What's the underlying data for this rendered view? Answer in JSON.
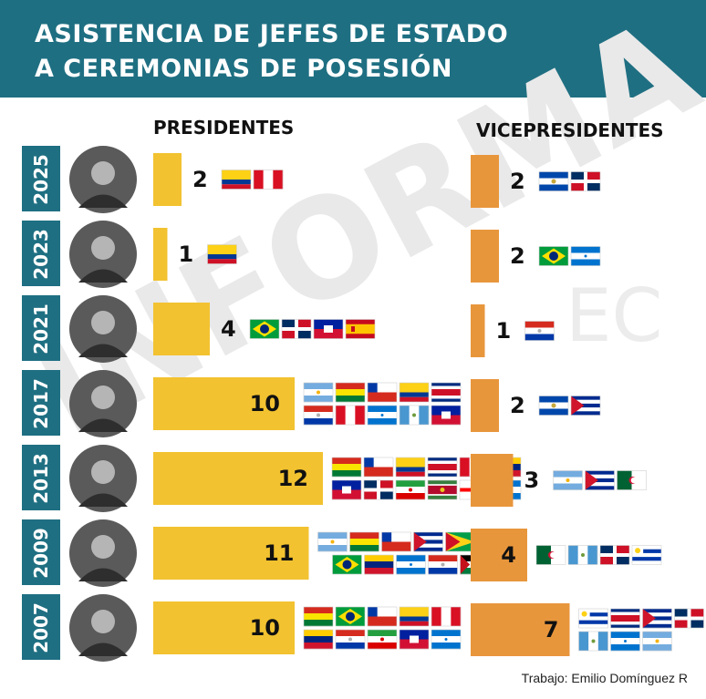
{
  "header": {
    "title_line1": "ASISTENCIA DE JEFES DE ESTADO",
    "title_line2": "A CEREMONIAS DE POSESIÓN",
    "background": "#1f6f82"
  },
  "watermark": {
    "line1": "INFORMA",
    "line2": "EC"
  },
  "colors": {
    "presidentes": "#f2c230",
    "vicepresidentes": "#e8963c",
    "year_label_bg": "#1f6f82"
  },
  "chart_data": {
    "type": "bar",
    "categories": [
      "2025",
      "2023",
      "2021",
      "2017",
      "2013",
      "2009",
      "2007"
    ],
    "series": [
      {
        "name": "PRESIDENTES",
        "values": [
          2,
          1,
          4,
          10,
          12,
          11,
          10
        ]
      },
      {
        "name": "VICEPRESIDENTES",
        "values": [
          2,
          2,
          1,
          2,
          3,
          4,
          7
        ]
      }
    ],
    "flags": {
      "presidentes": [
        [
          "colombia",
          "peru"
        ],
        [
          "colombia"
        ],
        [
          "brazil",
          "dominican-republic",
          "haiti",
          "spain"
        ],
        [
          "argentina",
          "bolivia",
          "chile",
          "colombia",
          "costa-rica",
          "paraguay",
          "peru",
          "honduras",
          "guatemala",
          "haiti"
        ],
        [
          "bolivia",
          "chile",
          "colombia",
          "costa-rica",
          "peru",
          "venezuela",
          "haiti",
          "dominican-republic",
          "iran",
          "suriname",
          "georgia",
          "honduras"
        ],
        [
          "argentina",
          "bolivia",
          "chile",
          "cuba",
          "guyana",
          "honduras",
          "brazil",
          "venezuela",
          "honduras",
          "paraguay",
          "western-sahara"
        ],
        [
          "bolivia",
          "brazil",
          "chile",
          "colombia",
          "peru",
          "venezuela",
          "paraguay",
          "iran",
          "haiti",
          "honduras"
        ]
      ],
      "vicepresidentes": [
        [
          "el-salvador",
          "dominican-republic"
        ],
        [
          "brazil",
          "honduras"
        ],
        [
          "paraguay"
        ],
        [
          "el-salvador",
          "cuba"
        ],
        [
          "argentina",
          "cuba",
          "algeria"
        ],
        [
          "algeria",
          "guatemala",
          "dominican-republic",
          "uruguay"
        ],
        [
          "uruguay",
          "costa-rica",
          "cuba",
          "dominican-republic",
          "guatemala",
          "honduras",
          "argentina"
        ]
      ]
    }
  },
  "credit": "Trabajo: Emilio Domínguez R"
}
